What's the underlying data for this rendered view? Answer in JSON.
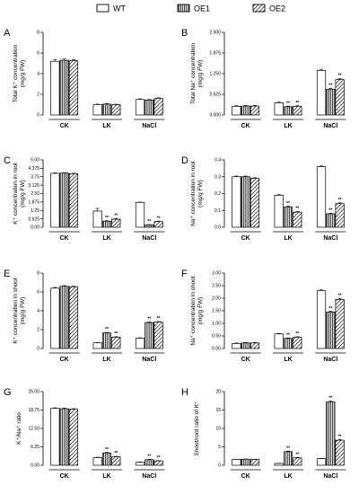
{
  "legend": [
    {
      "name": "WT",
      "pattern": "solid"
    },
    {
      "name": "OE1",
      "pattern": "vertical"
    },
    {
      "name": "OE2",
      "pattern": "diagonal"
    }
  ],
  "colors": {
    "bar_fill": "#ffffff",
    "bar_stroke": "#000000",
    "axis": "#000000"
  },
  "chart_data": [
    {
      "panel": "A",
      "type": "bar",
      "ylabel": [
        "Total K⁺ concentration",
        "(mg/g FW)"
      ],
      "categories": [
        "CK",
        "LK",
        "NaCl"
      ],
      "series": [
        {
          "name": "WT",
          "values": [
            5.2,
            1.0,
            1.5
          ],
          "errors": [
            0.15,
            0.05,
            0.06
          ],
          "sig": [
            "",
            "",
            ""
          ]
        },
        {
          "name": "OE1",
          "values": [
            5.3,
            1.05,
            1.45
          ],
          "errors": [
            0.12,
            0.05,
            0.05
          ],
          "sig": [
            "",
            "",
            ""
          ]
        },
        {
          "name": "OE2",
          "values": [
            5.25,
            1.0,
            1.6
          ],
          "errors": [
            0.1,
            0.04,
            0.06
          ],
          "sig": [
            "",
            "",
            ""
          ]
        }
      ],
      "ylim": [
        0,
        8
      ],
      "yticks": [
        0,
        2,
        4,
        6,
        8
      ],
      "tick_labels": [
        "0",
        "2",
        "4",
        "6",
        "8"
      ]
    },
    {
      "panel": "B",
      "type": "bar",
      "ylabel": [
        "Total Na⁺ concentration",
        "(mg/g FW)"
      ],
      "categories": [
        "CK",
        "LK",
        "NaCl"
      ],
      "series": [
        {
          "name": "WT",
          "values": [
            0.26,
            0.37,
            1.35
          ],
          "errors": [
            0.02,
            0.02,
            0.03
          ],
          "sig": [
            "",
            "",
            ""
          ]
        },
        {
          "name": "OE1",
          "values": [
            0.27,
            0.25,
            0.78
          ],
          "errors": [
            0.02,
            0.02,
            0.03
          ],
          "sig": [
            "",
            "**",
            "**"
          ]
        },
        {
          "name": "OE2",
          "values": [
            0.27,
            0.26,
            1.07
          ],
          "errors": [
            0.02,
            0.02,
            0.03
          ],
          "sig": [
            "",
            "**",
            "**"
          ]
        }
      ],
      "ylim": [
        0,
        2.5
      ],
      "yticks": [
        0,
        0.625,
        1.25,
        1.875,
        2.5
      ],
      "tick_labels": [
        "0.000",
        "0.625",
        "1.250",
        "1.875",
        "2.500"
      ]
    },
    {
      "panel": "C",
      "type": "bar",
      "ylabel": [
        "K⁺ concentration in root",
        "(mg/g FW)"
      ],
      "categories": [
        "CK",
        "LK",
        "NaCl"
      ],
      "series": [
        {
          "name": "WT",
          "values": [
            4.0,
            1.2,
            1.85
          ],
          "errors": [
            0.04,
            0.2,
            0.02
          ],
          "sig": [
            "",
            "",
            ""
          ]
        },
        {
          "name": "OE1",
          "values": [
            4.02,
            0.45,
            0.18
          ],
          "errors": [
            0.03,
            0.04,
            0.02
          ],
          "sig": [
            "",
            "**",
            "**"
          ]
        },
        {
          "name": "OE2",
          "values": [
            3.98,
            0.6,
            0.42
          ],
          "errors": [
            0.03,
            0.05,
            0.03
          ],
          "sig": [
            "",
            "**",
            "**"
          ]
        }
      ],
      "ylim": [
        0,
        5
      ],
      "yticks": [
        0,
        0.625,
        1.25,
        1.875,
        2.5,
        3.125,
        3.75,
        4.375,
        5.0
      ],
      "tick_labels": [
        "0.00",
        "0.625",
        "1.25",
        "1.875",
        "2.50",
        "3.125",
        "3.75",
        "4.375",
        "5.00"
      ]
    },
    {
      "panel": "D",
      "type": "bar",
      "ylabel": [
        "Na⁺ concentration in root",
        "(mg/g FW)"
      ],
      "categories": [
        "CK",
        "LK",
        "NaCl"
      ],
      "series": [
        {
          "name": "WT",
          "values": [
            0.3,
            0.19,
            0.36
          ],
          "errors": [
            0.004,
            0.004,
            0.004
          ],
          "sig": [
            "",
            "",
            ""
          ]
        },
        {
          "name": "OE1",
          "values": [
            0.3,
            0.12,
            0.08
          ],
          "errors": [
            0.004,
            0.005,
            0.004
          ],
          "sig": [
            "",
            "**",
            "**"
          ]
        },
        {
          "name": "OE2",
          "values": [
            0.29,
            0.09,
            0.14
          ],
          "errors": [
            0.004,
            0.004,
            0.005
          ],
          "sig": [
            "",
            "**",
            "**"
          ]
        }
      ],
      "ylim": [
        0,
        0.4
      ],
      "yticks": [
        0,
        0.1,
        0.2,
        0.3,
        0.4
      ],
      "tick_labels": [
        "0.0",
        "0.1",
        "0.2",
        "0.3",
        "0.4"
      ]
    },
    {
      "panel": "E",
      "type": "bar",
      "ylabel": [
        "K⁺ concentration in shoot",
        "(mg/g FW)"
      ],
      "categories": [
        "CK",
        "LK",
        "NaCl"
      ],
      "series": [
        {
          "name": "WT",
          "values": [
            6.4,
            0.6,
            1.1
          ],
          "errors": [
            0.08,
            0.03,
            0.04
          ],
          "sig": [
            "",
            "",
            ""
          ]
        },
        {
          "name": "OE1",
          "values": [
            6.6,
            1.65,
            2.75
          ],
          "errors": [
            0.07,
            0.06,
            0.07
          ],
          "sig": [
            "",
            "**",
            "**"
          ]
        },
        {
          "name": "OE2",
          "values": [
            6.55,
            1.2,
            2.8
          ],
          "errors": [
            0.06,
            0.05,
            0.06
          ],
          "sig": [
            "",
            "**",
            "**"
          ]
        }
      ],
      "ylim": [
        0,
        8
      ],
      "yticks": [
        0,
        2,
        4,
        6,
        8
      ],
      "tick_labels": [
        "0",
        "2",
        "4",
        "6",
        "8"
      ]
    },
    {
      "panel": "F",
      "type": "bar",
      "ylabel": [
        "Na⁺ concentration in shoot",
        "(mg/g FW)"
      ],
      "categories": [
        "CK",
        "LK",
        "NaCl"
      ],
      "series": [
        {
          "name": "WT",
          "values": [
            0.2,
            0.58,
            2.3
          ],
          "errors": [
            0.02,
            0.02,
            0.03
          ],
          "sig": [
            "",
            "",
            ""
          ]
        },
        {
          "name": "OE1",
          "values": [
            0.22,
            0.4,
            1.45
          ],
          "errors": [
            0.02,
            0.02,
            0.03
          ],
          "sig": [
            "",
            "**",
            "**"
          ]
        },
        {
          "name": "OE2",
          "values": [
            0.22,
            0.45,
            1.95
          ],
          "errors": [
            0.02,
            0.02,
            0.04
          ],
          "sig": [
            "",
            "**",
            "**"
          ]
        }
      ],
      "ylim": [
        0,
        3.0
      ],
      "yticks": [
        0,
        0.5,
        1.0,
        1.5,
        2.0,
        2.5,
        3.0
      ],
      "tick_labels": [
        "0.00",
        "0.50",
        "1.00",
        "1.50",
        "2.00",
        "2.50",
        "3.00"
      ]
    },
    {
      "panel": "G",
      "type": "bar",
      "ylabel": [
        "K⁺/Na⁺ ratio"
      ],
      "categories": [
        "CK",
        "LK",
        "NaCl"
      ],
      "series": [
        {
          "name": "WT",
          "values": [
            19.3,
            2.6,
            1.0
          ],
          "errors": [
            0.2,
            0.15,
            0.08
          ],
          "sig": [
            "",
            "",
            ""
          ]
        },
        {
          "name": "OE1",
          "values": [
            19.2,
            4.2,
            1.9
          ],
          "errors": [
            0.2,
            0.2,
            0.1
          ],
          "sig": [
            "",
            "**",
            "**"
          ]
        },
        {
          "name": "OE2",
          "values": [
            19.0,
            2.9,
            1.5
          ],
          "errors": [
            0.2,
            0.15,
            0.08
          ],
          "sig": [
            "",
            "**",
            "**"
          ]
        }
      ],
      "ylim": [
        0,
        25
      ],
      "yticks": [
        0,
        6.25,
        12.5,
        18.75,
        25
      ],
      "tick_labels": [
        "0.00",
        "6.25",
        "12.50",
        "18.75",
        "25.00"
      ]
    },
    {
      "panel": "H",
      "type": "bar",
      "ylabel": [
        "Shoot/root ratio of K⁺"
      ],
      "categories": [
        "CK",
        "LK",
        "NaCl"
      ],
      "series": [
        {
          "name": "WT",
          "values": [
            1.6,
            0.5,
            1.8
          ],
          "errors": [
            0.05,
            0.03,
            0.05
          ],
          "sig": [
            "",
            "",
            ""
          ]
        },
        {
          "name": "OE1",
          "values": [
            1.65,
            3.7,
            17.2
          ],
          "errors": [
            0.05,
            0.15,
            0.3
          ],
          "sig": [
            "",
            "**",
            "**"
          ]
        },
        {
          "name": "OE2",
          "values": [
            1.6,
            2.0,
            6.8
          ],
          "errors": [
            0.05,
            0.1,
            0.2
          ],
          "sig": [
            "",
            "**",
            "**"
          ]
        }
      ],
      "ylim": [
        0,
        20
      ],
      "yticks": [
        0,
        5,
        10,
        15,
        20
      ],
      "tick_labels": [
        "0",
        "5",
        "10",
        "15",
        "20"
      ]
    }
  ]
}
